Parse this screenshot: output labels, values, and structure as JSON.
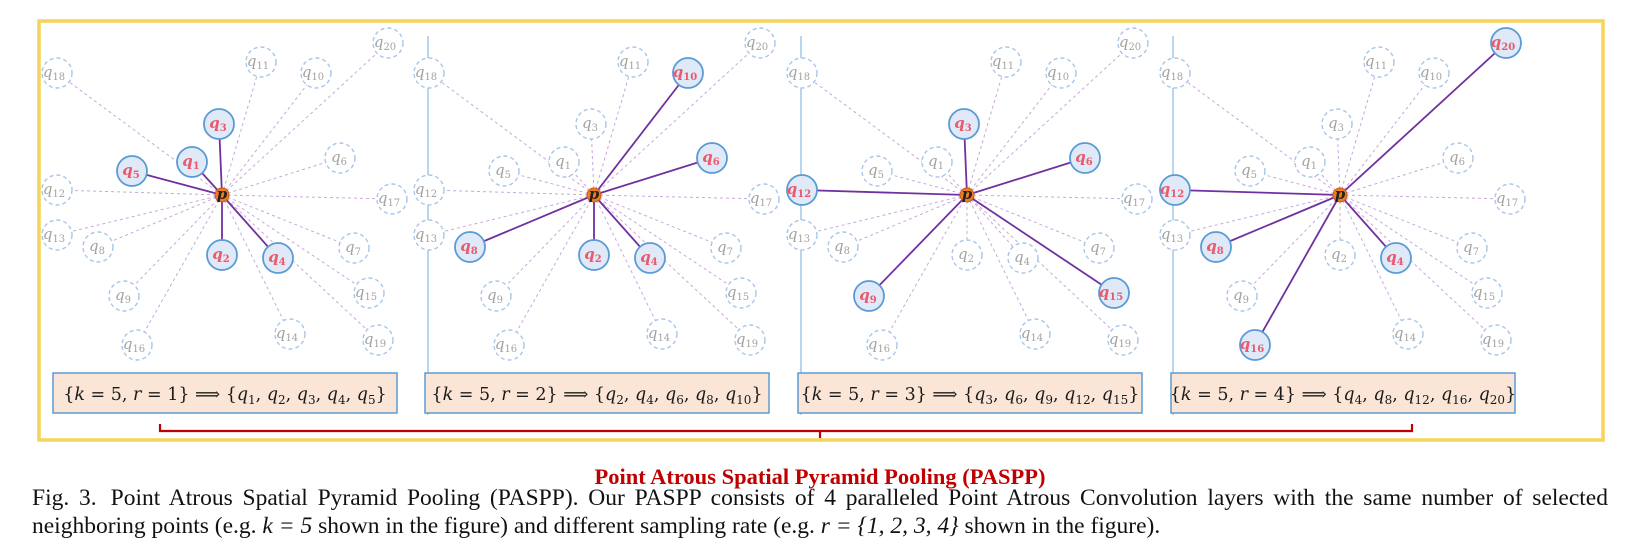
{
  "panels": [
    {
      "name": "rate-1",
      "formula": {
        "k": "5",
        "r": "1",
        "selected": [
          [
            "q",
            "1"
          ],
          [
            "q",
            "2"
          ],
          [
            "q",
            "3"
          ],
          [
            "q",
            "4"
          ],
          [
            "q",
            "5"
          ]
        ]
      },
      "selected_points": [
        "1",
        "2",
        "3",
        "4",
        "5"
      ]
    },
    {
      "name": "rate-2",
      "formula": {
        "k": "5",
        "r": "2",
        "selected": [
          [
            "q",
            "2"
          ],
          [
            "q",
            "4"
          ],
          [
            "q",
            "6"
          ],
          [
            "q",
            "8"
          ],
          [
            "q",
            "10"
          ]
        ]
      },
      "selected_points": [
        "2",
        "4",
        "6",
        "8",
        "10"
      ]
    },
    {
      "name": "rate-3",
      "formula": {
        "k": "5",
        "r": "3",
        "selected": [
          [
            "q",
            "3"
          ],
          [
            "q",
            "6"
          ],
          [
            "q",
            "9"
          ],
          [
            "q",
            "12"
          ],
          [
            "q",
            "15"
          ]
        ]
      },
      "selected_points": [
        "3",
        "6",
        "9",
        "12",
        "15"
      ]
    },
    {
      "name": "rate-4",
      "formula": {
        "k": "5",
        "r": "4",
        "selected": [
          [
            "q",
            "4"
          ],
          [
            "q",
            "8"
          ],
          [
            "q",
            "12"
          ],
          [
            "q",
            "16"
          ],
          [
            "q",
            "20"
          ]
        ]
      },
      "selected_points": [
        "4",
        "8",
        "12",
        "16",
        "20"
      ]
    }
  ],
  "center_label": "p",
  "point_prefix": "q",
  "point_indices": [
    "1",
    "2",
    "3",
    "4",
    "5",
    "6",
    "7",
    "8",
    "9",
    "10",
    "11",
    "12",
    "13",
    "14",
    "15",
    "16",
    "17",
    "18",
    "19",
    "20"
  ],
  "brace_label": "Point Atrous Spatial Pyramid Pooling (PASPP)",
  "caption": {
    "fig": "Fig. 3.",
    "t1": "Point Atrous Spatial Pyramid Pooling (PASPP). Our PASPP consists of 4 paralleled Point Atrous Convolution layers with the same number of selected neighboring points (e.g.",
    "math1": "k = 5",
    "t2": "shown in the figure) and different sampling rate (e.g.",
    "math2": "r = {1, 2, 3, 4}",
    "t3": "shown in the figure)."
  },
  "colors": {
    "frame": "#f6d35a",
    "center_fill": "#ee7d22",
    "selected_fill": "#dfe9f7",
    "selected_stroke": "#5b9bd5",
    "point_text": "#ea5a6e",
    "dashed": "#a9c6ea",
    "dashed_text": "#a3a3a3",
    "line": "#7030a0",
    "faint_line": "#c8a8dc",
    "box_fill": "#fbe5d6",
    "box_stroke": "#5b9bd5",
    "divider": "#9dc3e6",
    "brace": "#c00000"
  }
}
